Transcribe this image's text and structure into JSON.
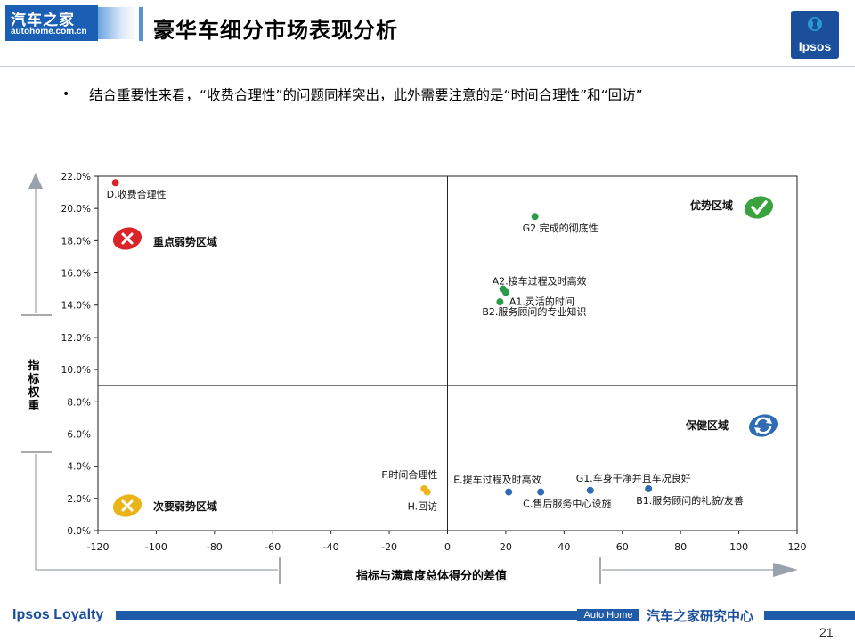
{
  "header": {
    "logo_line1": "汽车之家",
    "logo_line2": "autohome.com.cn",
    "title": "豪华车细分市场表现分析",
    "ipsos_logo": "Ipsos"
  },
  "bullet": {
    "text": "结合重要性来看，“收费合理性”的问题同样突出，此外需要注意的是“时间合理性”和“回访”"
  },
  "chart_data": {
    "type": "scatter",
    "xlabel": "指标与满意度总体得分的差值",
    "ylabel": "指标权重",
    "xlim": [
      -120,
      120
    ],
    "ylim": [
      0,
      22
    ],
    "x_ticks": [
      "-120",
      "-100",
      "-80",
      "-60",
      "-40",
      "-20",
      "0",
      "20",
      "40",
      "60",
      "80",
      "100",
      "120"
    ],
    "y_ticks": [
      "0.0%",
      "2.0%",
      "4.0%",
      "6.0%",
      "8.0%",
      "10.0%",
      "12.0%",
      "14.0%",
      "16.0%",
      "18.0%",
      "20.0%",
      "22.0%"
    ],
    "points": [
      {
        "label": "D.收费合理性",
        "x": -114,
        "y": 21.6,
        "color": "#d9242a"
      },
      {
        "label": "G2.完成的彻底性",
        "x": 30,
        "y": 19.5,
        "color": "#2b9a4a"
      },
      {
        "label": "A2.接车过程及时高效",
        "x": 19,
        "y": 15.0,
        "color": "#2b9a4a"
      },
      {
        "label": "A1.灵活的时间",
        "x": 20,
        "y": 14.8,
        "color": "#2b9a4a"
      },
      {
        "label": "B2.服务顾问的专业知识",
        "x": 18,
        "y": 14.2,
        "color": "#2b9a4a"
      },
      {
        "label": "F.时间合理性",
        "x": -8,
        "y": 2.6,
        "color": "#f0b418"
      },
      {
        "label": "H.回访",
        "x": -7,
        "y": 2.4,
        "color": "#f0b418"
      },
      {
        "label": "E.提车过程及时高效",
        "x": 21,
        "y": 2.4,
        "color": "#2f6cb5"
      },
      {
        "label": "C.售后服务中心设施",
        "x": 32,
        "y": 2.4,
        "color": "#2f6cb5"
      },
      {
        "label": "G1.车身干净并且车况良好",
        "x": 49,
        "y": 2.5,
        "color": "#2f6cb5"
      },
      {
        "label": "B1.服务顾问的礼貌/友善",
        "x": 69,
        "y": 2.6,
        "color": "#2f6cb5"
      }
    ],
    "quadrants": {
      "top_left": "重点弱势区域",
      "top_right": "优势区域",
      "bottom_left": "次要弱势区域",
      "bottom_right": "保健区域"
    },
    "divider_x": 0,
    "divider_y": 9.0
  },
  "footer": {
    "brand": "Ipsos Loyalty",
    "autohome": "Auto Home",
    "center": "汽车之家研究中心",
    "page": "21"
  }
}
